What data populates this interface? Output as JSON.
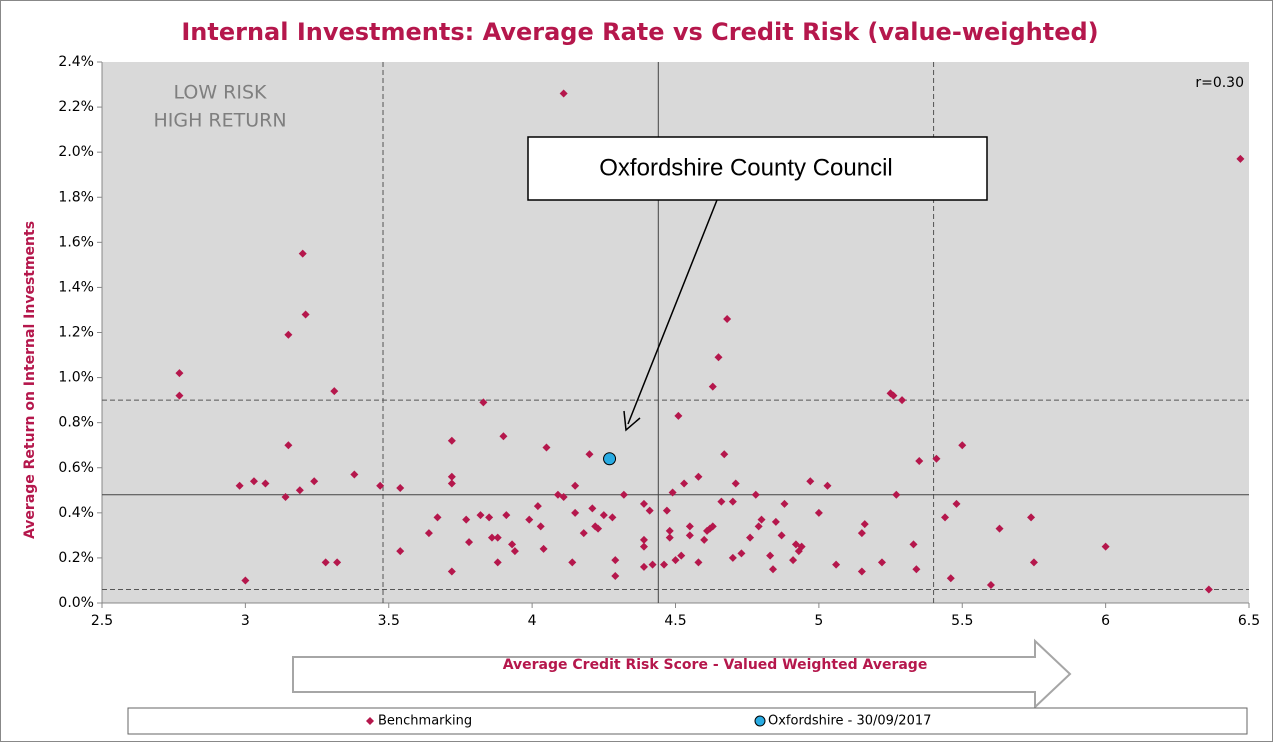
{
  "chart_data": {
    "type": "scatter",
    "title": "Internal Investments: Average Rate vs Credit Risk (value-weighted)",
    "x_label": "Average Credit Risk Score - Valued Weighted Average",
    "y_label": "Average Return on Internal Investments",
    "annotations": [
      "LOW RISK",
      "HIGH RETURN",
      "r=0.30"
    ],
    "callout": "Oxfordshire County Council",
    "xlim": [
      2.5,
      6.5
    ],
    "ylim": [
      0,
      2.4
    ],
    "xticks": [
      2.5,
      3,
      3.5,
      4,
      4.5,
      5,
      5.5,
      6,
      6.5
    ],
    "yticks": [
      {
        "value": 0,
        "label": "0.0%"
      },
      {
        "value": 0.2,
        "label": "0.2%"
      },
      {
        "value": 0.4,
        "label": "0.4%"
      },
      {
        "value": 0.6,
        "label": "0.6%"
      },
      {
        "value": 0.8,
        "label": "0.8%"
      },
      {
        "value": 1.0,
        "label": "1.0%"
      },
      {
        "value": 1.2,
        "label": "1.2%"
      },
      {
        "value": 1.4,
        "label": "1.4%"
      },
      {
        "value": 1.6,
        "label": "1.6%"
      },
      {
        "value": 1.8,
        "label": "1.8%"
      },
      {
        "value": 2.0,
        "label": "2.0%"
      },
      {
        "value": 2.2,
        "label": "2.2%"
      },
      {
        "value": 2.4,
        "label": "2.4%"
      }
    ],
    "grid": false,
    "reference_lines": {
      "x": [
        {
          "value": 3.48,
          "style": "dashed"
        },
        {
          "value": 4.44,
          "style": "solid"
        },
        {
          "value": 5.4,
          "style": "dashed"
        }
      ],
      "y": [
        {
          "value": 0.06,
          "style": "dashed"
        },
        {
          "value": 0.48,
          "style": "solid"
        },
        {
          "value": 0.9,
          "style": "dashed"
        }
      ]
    },
    "legend": "bottom",
    "series": [
      {
        "name": "Benchmarking",
        "color": "#b5174c",
        "marker": "diamond",
        "x": [
          2.77,
          2.77,
          2.98,
          3.0,
          3.03,
          3.07,
          3.15,
          3.15,
          3.14,
          3.19,
          3.2,
          3.21,
          3.24,
          3.28,
          3.31,
          3.32,
          3.38,
          3.47,
          3.54,
          3.54,
          3.64,
          3.67,
          3.72,
          3.72,
          3.72,
          3.72,
          3.77,
          3.78,
          3.82,
          3.83,
          3.85,
          3.86,
          3.88,
          3.88,
          3.9,
          3.91,
          3.93,
          3.94,
          3.99,
          4.02,
          4.03,
          4.04,
          4.05,
          4.09,
          4.11,
          4.11,
          4.14,
          4.15,
          4.15,
          4.18,
          4.2,
          4.21,
          4.22,
          4.23,
          4.25,
          4.28,
          4.29,
          4.29,
          4.32,
          4.39,
          4.39,
          4.39,
          4.39,
          4.41,
          4.42,
          4.46,
          4.47,
          4.48,
          4.48,
          4.49,
          4.5,
          4.51,
          4.52,
          4.53,
          4.55,
          4.55,
          4.58,
          4.58,
          4.6,
          4.61,
          4.62,
          4.63,
          4.63,
          4.65,
          4.66,
          4.67,
          4.68,
          4.7,
          4.7,
          4.71,
          4.73,
          4.76,
          4.78,
          4.79,
          4.8,
          4.83,
          4.84,
          4.85,
          4.87,
          4.88,
          4.91,
          4.92,
          4.93,
          4.94,
          4.97,
          5.0,
          5.03,
          5.06,
          5.15,
          5.15,
          5.16,
          5.22,
          5.25,
          5.26,
          5.27,
          5.29,
          5.33,
          5.34,
          5.35,
          5.41,
          5.44,
          5.46,
          5.48,
          5.5,
          5.6,
          5.63,
          5.74,
          5.75,
          6.0,
          6.36,
          6.47
        ],
        "values": [
          1.02,
          0.92,
          0.52,
          0.1,
          0.54,
          0.53,
          1.19,
          0.7,
          0.47,
          0.5,
          1.55,
          1.28,
          0.54,
          0.18,
          0.94,
          0.18,
          0.57,
          0.52,
          0.51,
          0.23,
          0.31,
          0.38,
          0.72,
          0.56,
          0.53,
          0.14,
          0.37,
          0.27,
          0.39,
          0.89,
          0.38,
          0.29,
          0.29,
          0.18,
          0.74,
          0.39,
          0.26,
          0.23,
          0.37,
          0.43,
          0.34,
          0.24,
          0.69,
          0.48,
          0.47,
          2.26,
          0.18,
          0.52,
          0.4,
          0.31,
          0.66,
          0.42,
          0.34,
          0.33,
          0.39,
          0.38,
          0.19,
          0.12,
          0.48,
          0.44,
          0.28,
          0.25,
          0.16,
          0.41,
          0.17,
          0.17,
          0.41,
          0.32,
          0.29,
          0.49,
          0.19,
          0.83,
          0.21,
          0.53,
          0.34,
          0.3,
          0.56,
          0.18,
          0.28,
          0.32,
          0.33,
          0.34,
          0.96,
          1.09,
          0.45,
          0.66,
          1.26,
          0.2,
          0.45,
          0.53,
          0.22,
          0.29,
          0.48,
          0.34,
          0.37,
          0.21,
          0.15,
          0.36,
          0.3,
          0.44,
          0.19,
          0.26,
          0.23,
          0.25,
          0.54,
          0.4,
          0.52,
          0.17,
          0.14,
          0.31,
          0.35,
          0.18,
          0.93,
          0.92,
          0.48,
          0.9,
          0.26,
          0.15,
          0.63,
          0.64,
          0.38,
          0.11,
          0.44,
          0.7,
          0.08,
          0.33,
          0.38,
          0.18,
          0.25,
          0.06,
          1.97
        ]
      },
      {
        "name": "Oxfordshire - 30/09/2017",
        "color": "#29abe2",
        "marker": "circle",
        "x": [
          4.27
        ],
        "values": [
          0.64
        ]
      }
    ]
  }
}
